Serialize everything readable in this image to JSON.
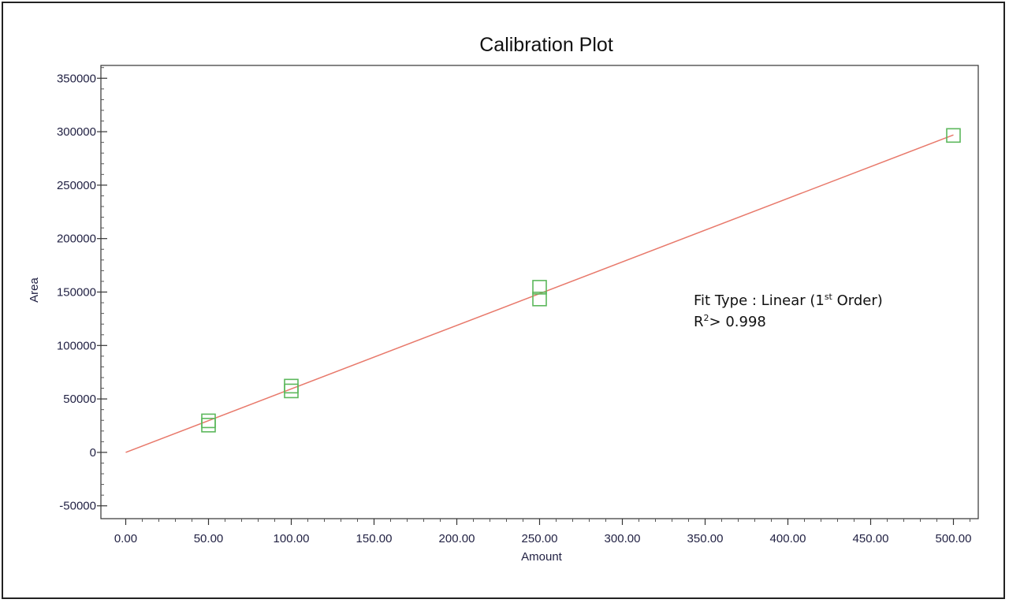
{
  "chart_data": {
    "type": "scatter",
    "title": "Calibration Plot",
    "xlabel": "Amount",
    "ylabel": "Area",
    "xlim": [
      -15,
      515
    ],
    "ylim": [
      -62000,
      362000
    ],
    "x_ticks": [
      "0.00",
      "50.00",
      "100.00",
      "150.00",
      "200.00",
      "250.00",
      "300.00",
      "350.00",
      "400.00",
      "450.00",
      "500.00"
    ],
    "y_ticks": [
      "350000",
      "300000",
      "250000",
      "200000",
      "150000",
      "100000",
      "50000",
      "0",
      "-50000"
    ],
    "grid": false,
    "series": [
      {
        "marker": "square",
        "color": "#5cb85c",
        "points": [
          {
            "x": 50,
            "y": 25500
          },
          {
            "x": 50,
            "y": 29500
          },
          {
            "x": 100,
            "y": 57500
          },
          {
            "x": 100,
            "y": 62000
          },
          {
            "x": 250,
            "y": 143500
          },
          {
            "x": 250,
            "y": 154500
          },
          {
            "x": 500,
            "y": 296500
          }
        ]
      }
    ],
    "fit_line": {
      "color": "#e8796b",
      "x": [
        0,
        500
      ],
      "y": [
        0,
        297000
      ]
    },
    "annotation": {
      "line1_main": "Fit Type : Linear (1",
      "line1_sup": "st",
      "line1_end": " Order)",
      "line2_main": "R",
      "line2_sup": "2",
      "line2_end": "> 0.998"
    }
  }
}
